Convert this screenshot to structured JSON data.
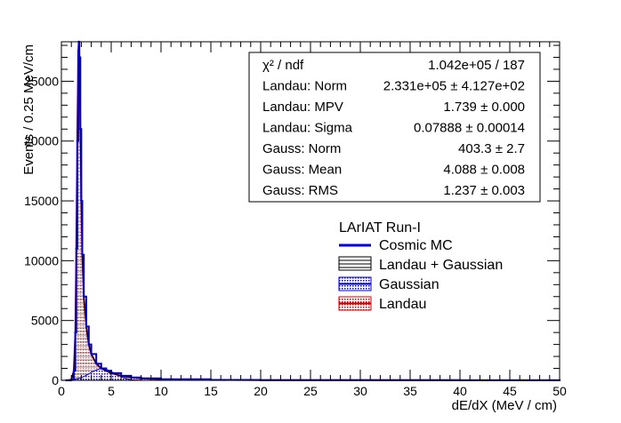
{
  "chart_data": {
    "type": "histogram",
    "title": "",
    "xlabel": "dE/dX (MeV / cm)",
    "ylabel": "Events / 0.25 MeV/cm",
    "xlim": [
      0,
      50
    ],
    "ylim": [
      0,
      28300
    ],
    "x_ticks": [
      0,
      5,
      10,
      15,
      20,
      25,
      30,
      35,
      40,
      45,
      50
    ],
    "y_ticks": [
      0,
      5000,
      10000,
      15000,
      20000,
      25000
    ],
    "grid": false,
    "legend_placement": "center-right",
    "legend": {
      "header": "LArIAT Run-I",
      "entries": [
        {
          "name": "Cosmic MC",
          "color": "#0000cc",
          "style": "line"
        },
        {
          "name": "Landau + Gaussian",
          "color": "#000000",
          "style": "hatch"
        },
        {
          "name": "Gaussian",
          "color": "#0000cc",
          "style": "dots"
        },
        {
          "name": "Landau",
          "color": "#cc0000",
          "style": "dots"
        }
      ]
    },
    "stats": [
      {
        "label": "χ² / ndf",
        "value": "1.042e+05 / 187"
      },
      {
        "label": "Landau: Norm",
        "value": "2.331e+05 ± 4.127e+02"
      },
      {
        "label": "Landau: MPV",
        "value": "1.739 ± 0.000"
      },
      {
        "label": "Landau: Sigma",
        "value": "0.07888 ± 0.00014"
      },
      {
        "label": "Gauss: Norm",
        "value": "403.3 ± 2.7"
      },
      {
        "label": "Gauss: Mean",
        "value": "4.088 ± 0.008"
      },
      {
        "label": "Gauss: RMS",
        "value": "1.237 ± 0.003"
      }
    ],
    "series": [
      {
        "name": "Cosmic MC",
        "x": [
          0.5,
          1.0,
          1.25,
          1.4,
          1.5,
          1.6,
          1.7,
          1.75,
          1.8,
          1.9,
          2.0,
          2.1,
          2.25,
          2.5,
          2.75,
          3.0,
          3.5,
          4.0,
          4.5,
          5.0,
          6.0,
          7.0,
          8.0,
          10.0,
          15.0,
          20.0,
          30.0,
          40.0,
          50.0
        ],
        "values": [
          0,
          50,
          800,
          4000,
          11000,
          20000,
          27500,
          28300,
          27000,
          21000,
          15000,
          10500,
          7000,
          4500,
          3000,
          2200,
          1400,
          1000,
          800,
          600,
          380,
          240,
          160,
          90,
          40,
          25,
          15,
          10,
          5
        ]
      }
    ]
  }
}
